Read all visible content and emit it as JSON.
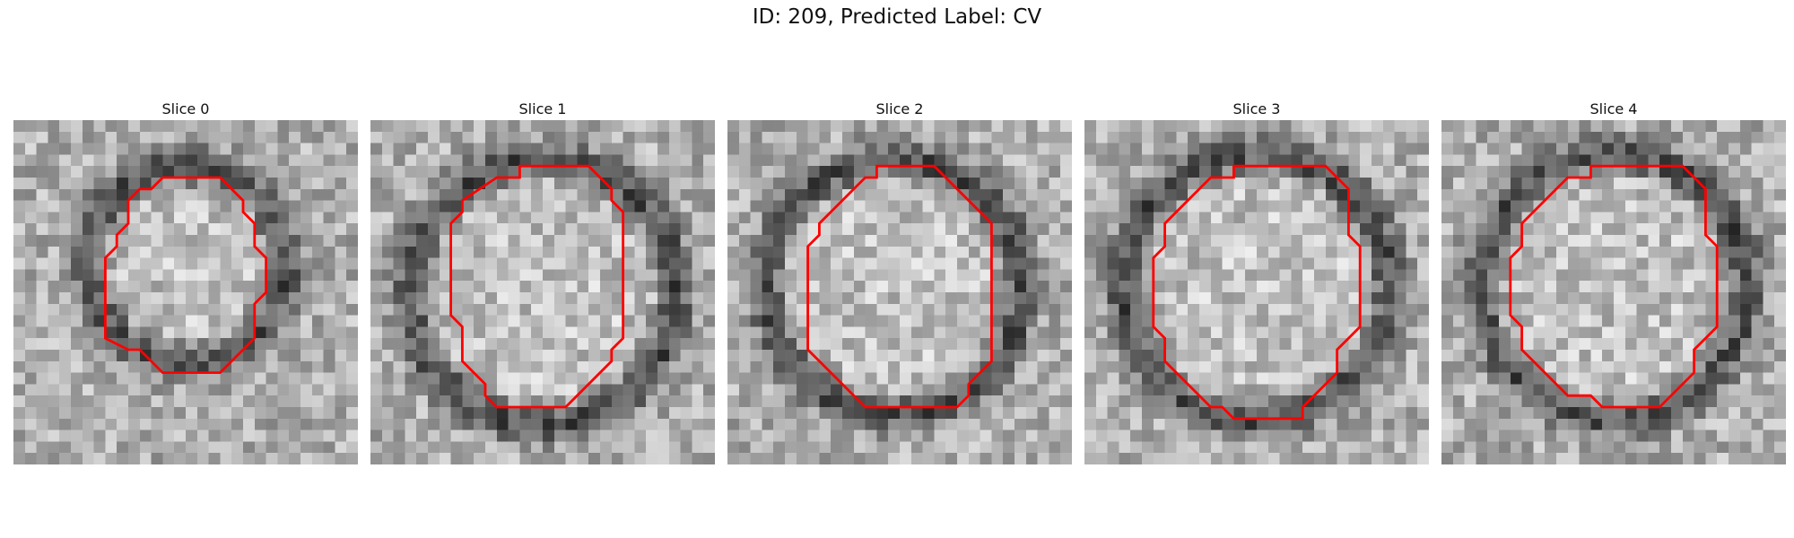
{
  "figure": {
    "title": "ID: 209, Predicted Label: CV"
  },
  "contour_color": "#ff0000",
  "slices": [
    {
      "title": "Slice 0",
      "seed": 11,
      "center": [
        15.0,
        12.5
      ],
      "radius": 7.0,
      "contour": [
        [
          13,
          5
        ],
        [
          18,
          5
        ],
        [
          20,
          7
        ],
        [
          20,
          8
        ],
        [
          21,
          9
        ],
        [
          21,
          11
        ],
        [
          22,
          12
        ],
        [
          22,
          15
        ],
        [
          21,
          16
        ],
        [
          21,
          19
        ],
        [
          18,
          22
        ],
        [
          13,
          22
        ],
        [
          11,
          20
        ],
        [
          10,
          20
        ],
        [
          8,
          19
        ],
        [
          8,
          12
        ],
        [
          9,
          11
        ],
        [
          9,
          10
        ],
        [
          10,
          9
        ],
        [
          10,
          7
        ],
        [
          11,
          6
        ],
        [
          12,
          6
        ]
      ]
    },
    {
      "title": "Slice 1",
      "seed": 23,
      "center": [
        15.0,
        15.0
      ],
      "radius": 10.0,
      "contour": [
        [
          13,
          4
        ],
        [
          19,
          4
        ],
        [
          21,
          6
        ],
        [
          21,
          7
        ],
        [
          22,
          8
        ],
        [
          22,
          19
        ],
        [
          21,
          20
        ],
        [
          21,
          21
        ],
        [
          17,
          25
        ],
        [
          11,
          25
        ],
        [
          10,
          24
        ],
        [
          10,
          23
        ],
        [
          8,
          21
        ],
        [
          8,
          18
        ],
        [
          7,
          17
        ],
        [
          7,
          9
        ],
        [
          8,
          8
        ],
        [
          8,
          7
        ],
        [
          11,
          5
        ],
        [
          13,
          5
        ]
      ]
    },
    {
      "title": "Slice 2",
      "seed": 37,
      "center": [
        14.5,
        14.5
      ],
      "radius": 9.5,
      "contour": [
        [
          13,
          4
        ],
        [
          18,
          4
        ],
        [
          22,
          8
        ],
        [
          23,
          9
        ],
        [
          23,
          21
        ],
        [
          21,
          23
        ],
        [
          21,
          24
        ],
        [
          20,
          25
        ],
        [
          12,
          25
        ],
        [
          8,
          21
        ],
        [
          7,
          20
        ],
        [
          7,
          19
        ],
        [
          7,
          11
        ],
        [
          8,
          10
        ],
        [
          8,
          9
        ],
        [
          12,
          5
        ],
        [
          13,
          5
        ]
      ]
    },
    {
      "title": "Slice 3",
      "seed": 51,
      "center": [
        15.0,
        14.5
      ],
      "radius": 10.0,
      "contour": [
        [
          13,
          4
        ],
        [
          21,
          4
        ],
        [
          23,
          6
        ],
        [
          23,
          10
        ],
        [
          24,
          11
        ],
        [
          24,
          18
        ],
        [
          23,
          19
        ],
        [
          22,
          20
        ],
        [
          22,
          22
        ],
        [
          19,
          25
        ],
        [
          19,
          26
        ],
        [
          13,
          26
        ],
        [
          12,
          25
        ],
        [
          11,
          25
        ],
        [
          7,
          21
        ],
        [
          7,
          19
        ],
        [
          6,
          18
        ],
        [
          6,
          12
        ],
        [
          7,
          11
        ],
        [
          7,
          9
        ],
        [
          10,
          6
        ],
        [
          11,
          5
        ],
        [
          13,
          5
        ]
      ]
    },
    {
      "title": "Slice 4",
      "seed": 67,
      "center": [
        15.0,
        14.5
      ],
      "radius": 10.0,
      "contour": [
        [
          13,
          4
        ],
        [
          21,
          4
        ],
        [
          23,
          6
        ],
        [
          23,
          10
        ],
        [
          24,
          11
        ],
        [
          24,
          18
        ],
        [
          23,
          19
        ],
        [
          22,
          20
        ],
        [
          22,
          22
        ],
        [
          19,
          25
        ],
        [
          14,
          25
        ],
        [
          13,
          24
        ],
        [
          11,
          24
        ],
        [
          7,
          20
        ],
        [
          7,
          18
        ],
        [
          6,
          17
        ],
        [
          6,
          12
        ],
        [
          7,
          11
        ],
        [
          7,
          9
        ],
        [
          10,
          6
        ],
        [
          11,
          5
        ],
        [
          13,
          5
        ]
      ]
    }
  ]
}
